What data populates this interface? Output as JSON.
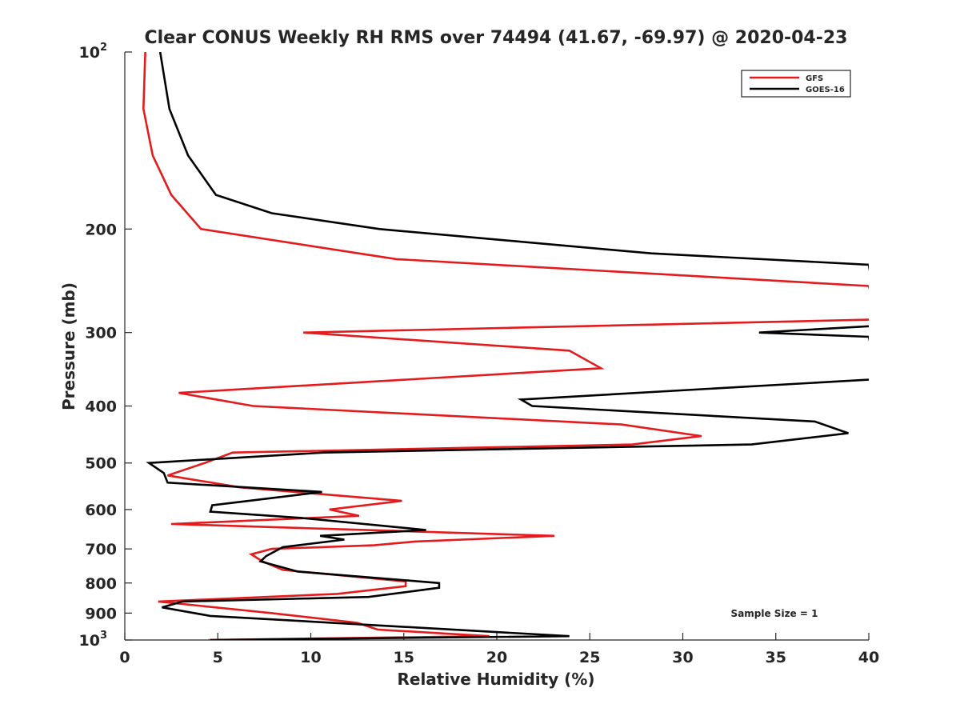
{
  "chart_data": {
    "type": "line",
    "title": "Clear CONUS Weekly RH RMS over 74494 (41.67, -69.97) @ 2020-04-23",
    "xlabel": "Relative Humidity (%)",
    "ylabel": "Pressure (mb)",
    "xlim": [
      0,
      40
    ],
    "ylim": [
      100,
      1000
    ],
    "yscale": "log",
    "yaxis_reversed": true,
    "grid": false,
    "legend_position": "top-right",
    "x_ticks": [
      "0",
      "5",
      "10",
      "15",
      "20",
      "25",
      "30",
      "35",
      "40"
    ],
    "y_ticks": [
      {
        "value": 100,
        "label": "10",
        "sup": "2"
      },
      {
        "value": 200,
        "label": "200",
        "sup": ""
      },
      {
        "value": 300,
        "label": "300",
        "sup": ""
      },
      {
        "value": 400,
        "label": "400",
        "sup": ""
      },
      {
        "value": 500,
        "label": "500",
        "sup": ""
      },
      {
        "value": 600,
        "label": "600",
        "sup": ""
      },
      {
        "value": 700,
        "label": "700",
        "sup": ""
      },
      {
        "value": 800,
        "label": "800",
        "sup": ""
      },
      {
        "value": 900,
        "label": "900",
        "sup": ""
      },
      {
        "value": 1000,
        "label": "10",
        "sup": "3"
      }
    ],
    "annotation": "Sample Size = 1",
    "series": [
      {
        "name": "GFS",
        "color": "#e41a1c",
        "points": [
          [
            1.1,
            100
          ],
          [
            1.0,
            125
          ],
          [
            1.5,
            150
          ],
          [
            2.5,
            175
          ],
          [
            4.1,
            200
          ],
          [
            14.6,
            225
          ],
          [
            40,
            250
          ],
          [
            40.5,
            285
          ],
          [
            9.6,
            300
          ],
          [
            23.9,
            322
          ],
          [
            25.6,
            345
          ],
          [
            2.9,
            380
          ],
          [
            6.9,
            400
          ],
          [
            26.7,
            430
          ],
          [
            31.0,
            450
          ],
          [
            27.3,
            465
          ],
          [
            5.8,
            480
          ],
          [
            4.3,
            500
          ],
          [
            2.3,
            525
          ],
          [
            6.2,
            550
          ],
          [
            14.9,
            580
          ],
          [
            11.0,
            600
          ],
          [
            12.6,
            615
          ],
          [
            2.5,
            635
          ],
          [
            23.1,
            665
          ],
          [
            15.6,
            680
          ],
          [
            13.4,
            690
          ],
          [
            7.9,
            700
          ],
          [
            6.8,
            715
          ],
          [
            7.4,
            735
          ],
          [
            8.5,
            760
          ],
          [
            15.1,
            795
          ],
          [
            15.1,
            810
          ],
          [
            11.4,
            835
          ],
          [
            1.8,
            860
          ],
          [
            7.9,
            900
          ],
          [
            12.5,
            935
          ],
          [
            13.6,
            960
          ],
          [
            19.6,
            985
          ],
          [
            4.5,
            1000
          ]
        ]
      },
      {
        "name": "GOES-16",
        "color": "#000000",
        "points": [
          [
            1.9,
            100
          ],
          [
            2.4,
            125
          ],
          [
            3.4,
            150
          ],
          [
            4.9,
            175
          ],
          [
            7.9,
            188
          ],
          [
            13.7,
            200
          ],
          [
            28.3,
            220
          ],
          [
            40,
            230
          ],
          [
            40.5,
            292
          ],
          [
            34.1,
            300
          ],
          [
            40,
            305
          ],
          [
            40.5,
            360
          ],
          [
            21.3,
            390
          ],
          [
            21.9,
            400
          ],
          [
            37.1,
            425
          ],
          [
            38.9,
            445
          ],
          [
            33.7,
            465
          ],
          [
            10.7,
            480
          ],
          [
            1.3,
            500
          ],
          [
            2.1,
            520
          ],
          [
            2.3,
            540
          ],
          [
            10.6,
            560
          ],
          [
            4.7,
            590
          ],
          [
            4.6,
            605
          ],
          [
            9.5,
            620
          ],
          [
            16.2,
            650
          ],
          [
            10.5,
            665
          ],
          [
            11.8,
            675
          ],
          [
            8.5,
            695
          ],
          [
            7.6,
            720
          ],
          [
            7.3,
            735
          ],
          [
            9.3,
            765
          ],
          [
            16.9,
            800
          ],
          [
            16.9,
            815
          ],
          [
            13.1,
            845
          ],
          [
            3.1,
            860
          ],
          [
            2.0,
            880
          ],
          [
            4.6,
            910
          ],
          [
            23.9,
            985
          ],
          [
            4.6,
            1000
          ]
        ]
      }
    ]
  }
}
